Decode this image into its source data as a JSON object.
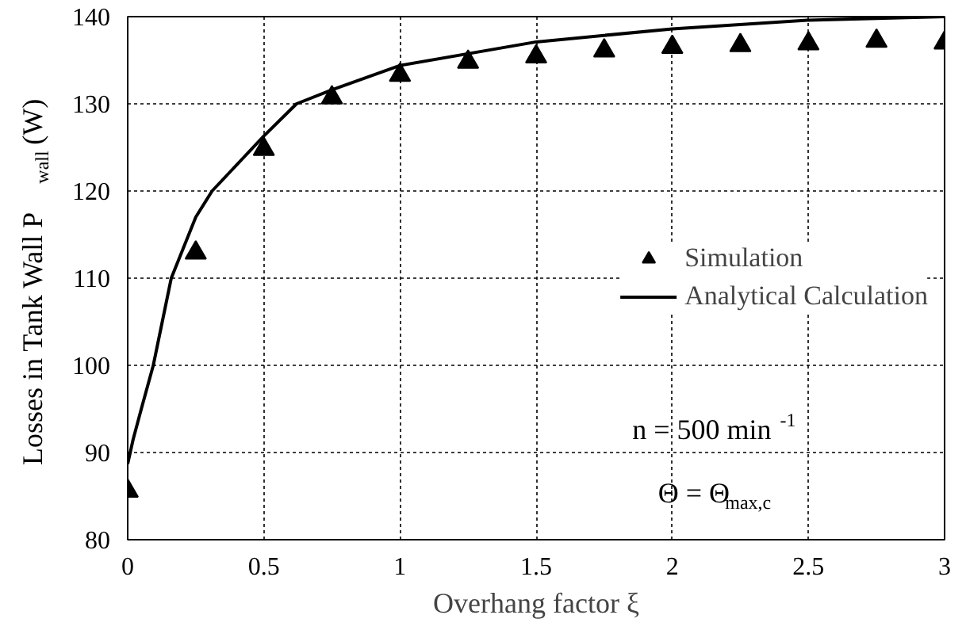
{
  "chart_data": {
    "type": "scatter",
    "xlabel": "Overhang factor ξ",
    "ylabel": "Losses in Tank Wall P$_{wall}$ (W)",
    "series": [
      {
        "name": "Simulation",
        "marker": "triangle",
        "color": "#000000",
        "x": [
          0,
          0.25,
          0.5,
          0.75,
          1,
          1.25,
          1.5,
          1.75,
          2,
          2.25,
          2.5,
          2.75,
          3
        ],
        "values": [
          85.6,
          112.9,
          124.8,
          130.7,
          133.3,
          134.8,
          135.4,
          136.1,
          136.5,
          136.7,
          136.9,
          137.2,
          137
        ]
      },
      {
        "name": "Analytical Calculation",
        "type": "line",
        "marker": "none",
        "line_style": "solid",
        "color": "#000000",
        "x": [
          0,
          0.02,
          0.05,
          0.094,
          0.16,
          0.25,
          0.31,
          0.5,
          0.62,
          0.75,
          1,
          1.5,
          2,
          2.5,
          3
        ],
        "values": [
          88.7,
          91.5,
          95,
          100,
          110,
          117,
          120,
          126.3,
          130,
          131.6,
          134.4,
          137.1,
          138.6,
          139.6,
          140
        ]
      }
    ],
    "annotations": [
      "n = 500 min$^{-1}$",
      "Θ = Θ$_{max,c}$"
    ],
    "xlim": [
      0,
      3
    ],
    "xticks": [
      0,
      0.5,
      1,
      1.5,
      2,
      2.5,
      3
    ],
    "ylim": [
      80,
      140
    ],
    "yticks": [
      80,
      90,
      100,
      110,
      120,
      130,
      140
    ],
    "grid": true,
    "legend": "right"
  }
}
